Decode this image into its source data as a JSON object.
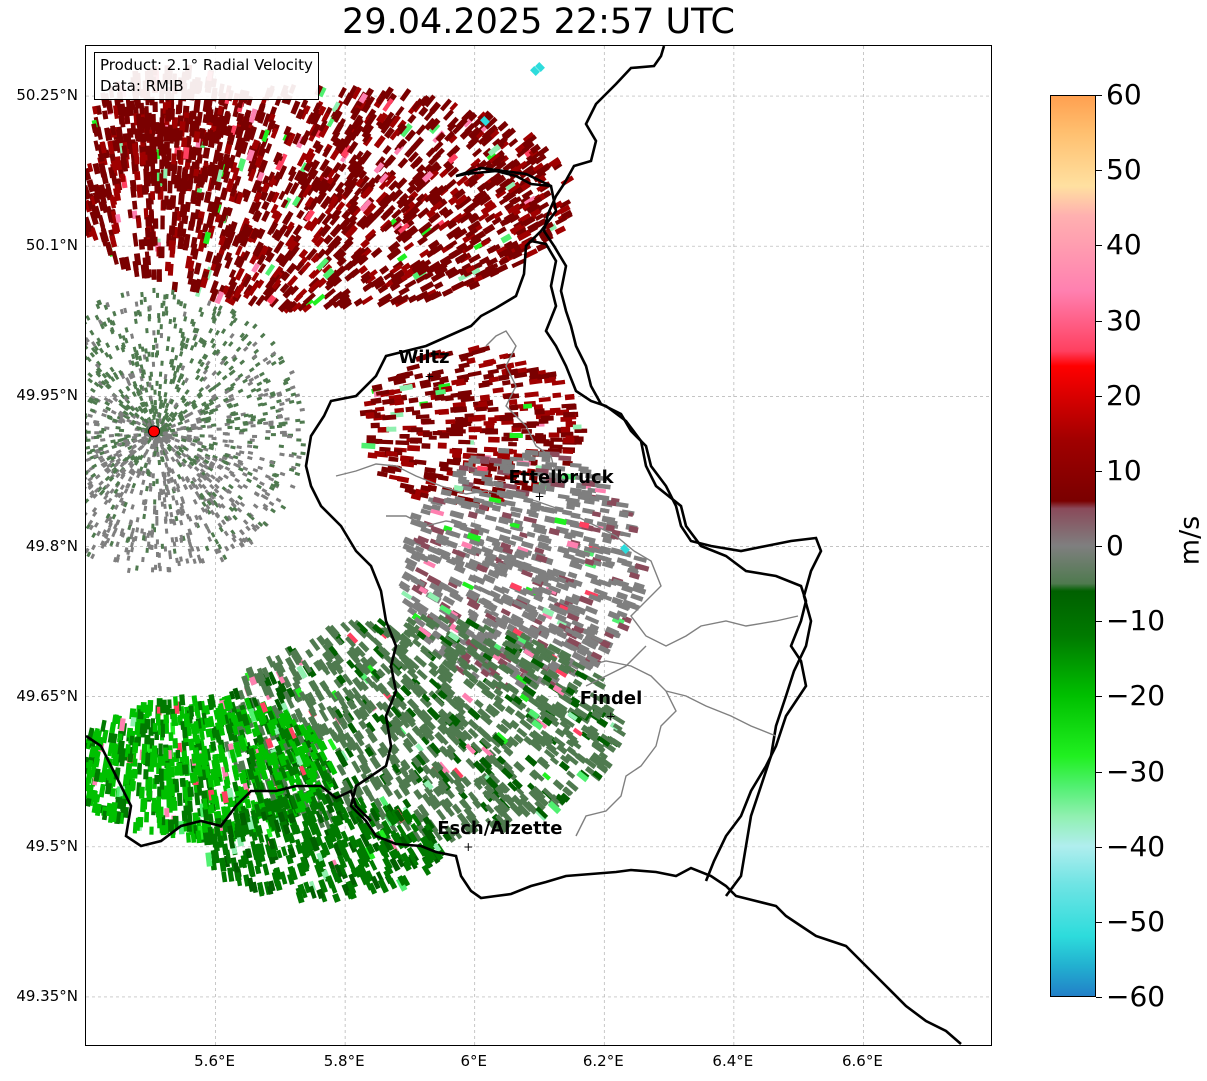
{
  "title": "29.04.2025 22:57 UTC",
  "info_box": {
    "product_line": "Product: 2.1° Radial Velocity",
    "data_line": "Data: RMIB"
  },
  "lat_ticks": [
    "50.25°N",
    "50.1°N",
    "49.95°N",
    "49.8°N",
    "49.65°N",
    "49.5°N",
    "49.35°N"
  ],
  "lon_ticks": [
    "5.6°E",
    "5.8°E",
    "6°E",
    "6.2°E",
    "6.4°E",
    "6.6°E"
  ],
  "cities": [
    {
      "name": "Wiltz",
      "lon": 5.93,
      "lat": 49.97
    },
    {
      "name": "Ettelbruck",
      "lon": 6.1,
      "lat": 49.85
    },
    {
      "name": "Findel",
      "lon": 6.21,
      "lat": 49.63
    },
    {
      "name": "Esch/Alzette",
      "lon": 5.99,
      "lat": 49.5
    }
  ],
  "radar_site": {
    "lon": 5.505,
    "lat": 49.915,
    "color": "#ff0000"
  },
  "colorbar": {
    "unit": "m/s",
    "min": -60,
    "max": 60,
    "ticks": [
      "60",
      "50",
      "40",
      "30",
      "20",
      "10",
      "0",
      "−10",
      "−20",
      "−30",
      "−40",
      "−50",
      "−60"
    ],
    "stops": [
      {
        "v": -60,
        "c": "#2280c8"
      },
      {
        "v": -56,
        "c": "#22b0d0"
      },
      {
        "v": -52,
        "c": "#2ddcdc"
      },
      {
        "v": -45,
        "c": "#70e4e4"
      },
      {
        "v": -40,
        "c": "#b0eeee"
      },
      {
        "v": -36,
        "c": "#90f0b0"
      },
      {
        "v": -32,
        "c": "#50f070"
      },
      {
        "v": -28,
        "c": "#20f020"
      },
      {
        "v": -20,
        "c": "#00c000"
      },
      {
        "v": -12,
        "c": "#007a00"
      },
      {
        "v": -6,
        "c": "#006000"
      },
      {
        "v": -5,
        "c": "#4f7a4f"
      },
      {
        "v": 0,
        "c": "#7f7f7f"
      },
      {
        "v": 5,
        "c": "#8a4a5a"
      },
      {
        "v": 6,
        "c": "#7a0000"
      },
      {
        "v": 14,
        "c": "#a00000"
      },
      {
        "v": 24,
        "c": "#ff0000"
      },
      {
        "v": 26,
        "c": "#ff4060"
      },
      {
        "v": 34,
        "c": "#ff80b0"
      },
      {
        "v": 44,
        "c": "#ffb0b0"
      },
      {
        "v": 48,
        "c": "#ffe0a0"
      },
      {
        "v": 55,
        "c": "#ffc070"
      },
      {
        "v": 60,
        "c": "#ffa050"
      }
    ]
  },
  "colors": {
    "border_country": "#000000",
    "border_canton": "#808080",
    "gridline": "#b0b0b0"
  }
}
